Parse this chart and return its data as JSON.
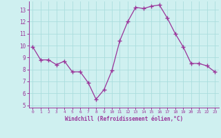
{
  "x": [
    0,
    1,
    2,
    3,
    4,
    5,
    6,
    7,
    8,
    9,
    10,
    11,
    12,
    13,
    14,
    15,
    16,
    17,
    18,
    19,
    20,
    21,
    22,
    23
  ],
  "y": [
    9.9,
    8.8,
    8.8,
    8.4,
    8.7,
    7.8,
    7.8,
    6.9,
    5.5,
    6.3,
    7.9,
    10.4,
    12.0,
    13.2,
    13.1,
    13.3,
    13.4,
    12.3,
    11.0,
    9.9,
    8.5,
    8.5,
    8.3,
    7.8
  ],
  "line_color": "#993399",
  "marker": "s",
  "marker_size": 2.0,
  "bg_color": "#cff0f0",
  "grid_color": "#aadddd",
  "xlabel": "Windchill (Refroidissement éolien,°C)",
  "xlim": [
    -0.5,
    23.5
  ],
  "ylim": [
    4.8,
    13.7
  ],
  "yticks": [
    5,
    6,
    7,
    8,
    9,
    10,
    11,
    12,
    13
  ],
  "xticks": [
    0,
    1,
    2,
    3,
    4,
    5,
    6,
    7,
    8,
    9,
    10,
    11,
    12,
    13,
    14,
    15,
    16,
    17,
    18,
    19,
    20,
    21,
    22,
    23
  ],
  "tick_color": "#993399",
  "label_color": "#993399",
  "axis_color": "#993399",
  "xtick_fontsize": 4.5,
  "ytick_fontsize": 5.5,
  "xlabel_fontsize": 5.5
}
